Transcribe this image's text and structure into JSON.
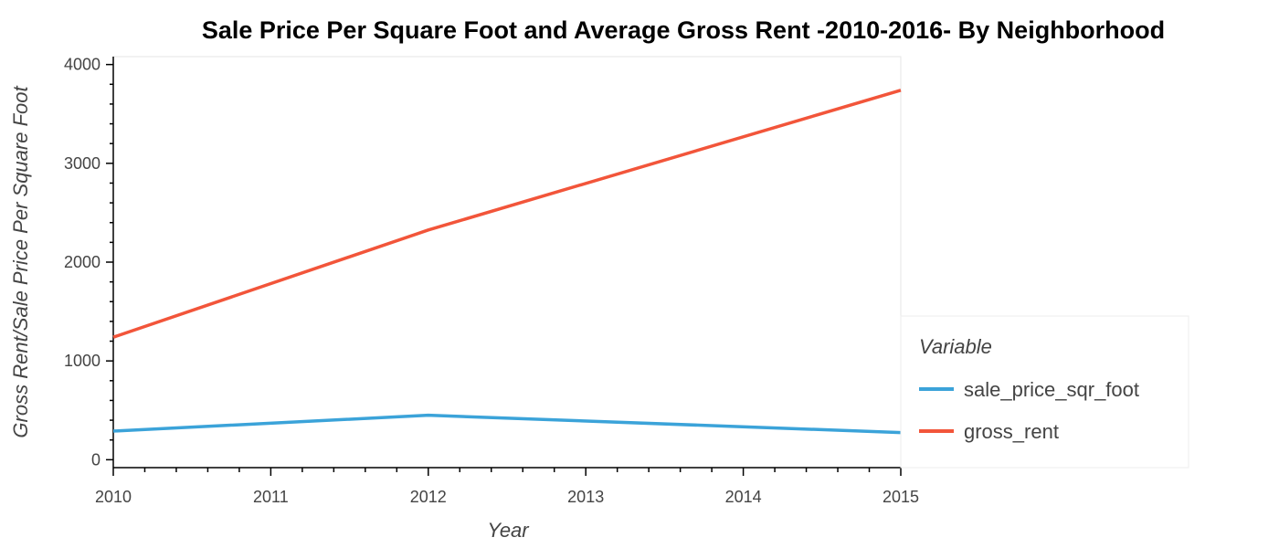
{
  "chart_data": {
    "type": "line",
    "title": "Sale Price Per Square Foot and Average Gross Rent -2010-2016- By Neighborhood",
    "xlabel": "Year",
    "ylabel": "Gross Rent/Sale Price Per Square Foot",
    "x": [
      2010,
      2012,
      2015
    ],
    "xlim": [
      2010,
      2015
    ],
    "ylim": [
      -80,
      4080
    ],
    "x_ticks": [
      2010,
      2011,
      2012,
      2013,
      2014,
      2015
    ],
    "y_ticks": [
      0,
      1000,
      2000,
      3000,
      4000
    ],
    "grid": false,
    "legend_title": "Variable",
    "legend_position": "right",
    "series": [
      {
        "name": "sale_price_sqr_foot",
        "color": "#3ba3d9",
        "values": [
          290,
          450,
          275
        ]
      },
      {
        "name": "gross_rent",
        "color": "#f2553a",
        "values": [
          1240,
          2325,
          3740
        ]
      }
    ]
  }
}
